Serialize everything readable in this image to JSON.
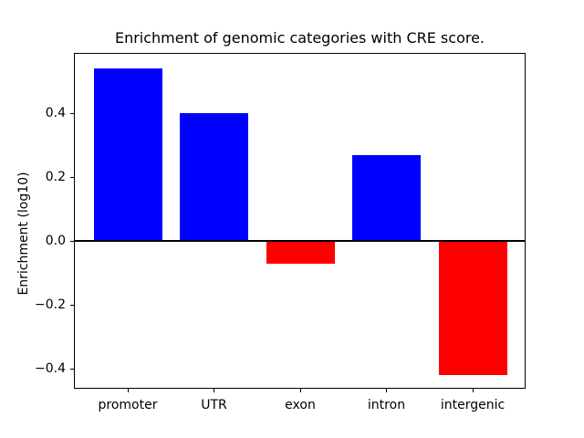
{
  "figure": {
    "background_color": "#ffffff",
    "text_color": "#000000"
  },
  "chart_data": {
    "type": "bar",
    "title": "Enrichment of genomic categories with CRE score.",
    "xlabel": "",
    "ylabel": "Enrichment (log10)",
    "categories": [
      "promoter",
      "UTR",
      "exon",
      "intron",
      "intergenic"
    ],
    "values": [
      0.54,
      0.4,
      -0.07,
      0.27,
      -0.42
    ],
    "yticks": [
      0.4,
      0.2,
      0.0,
      -0.2,
      -0.4
    ],
    "ytick_labels": [
      "0.4",
      "0.2",
      "0.0",
      "−0.2",
      "−0.4"
    ],
    "ylim": [
      -0.46,
      0.59
    ],
    "positive_color": "#0000ff",
    "negative_color": "#ff0000",
    "axis_color": "#000000",
    "grid": false,
    "legend": null,
    "zero_line": true
  }
}
